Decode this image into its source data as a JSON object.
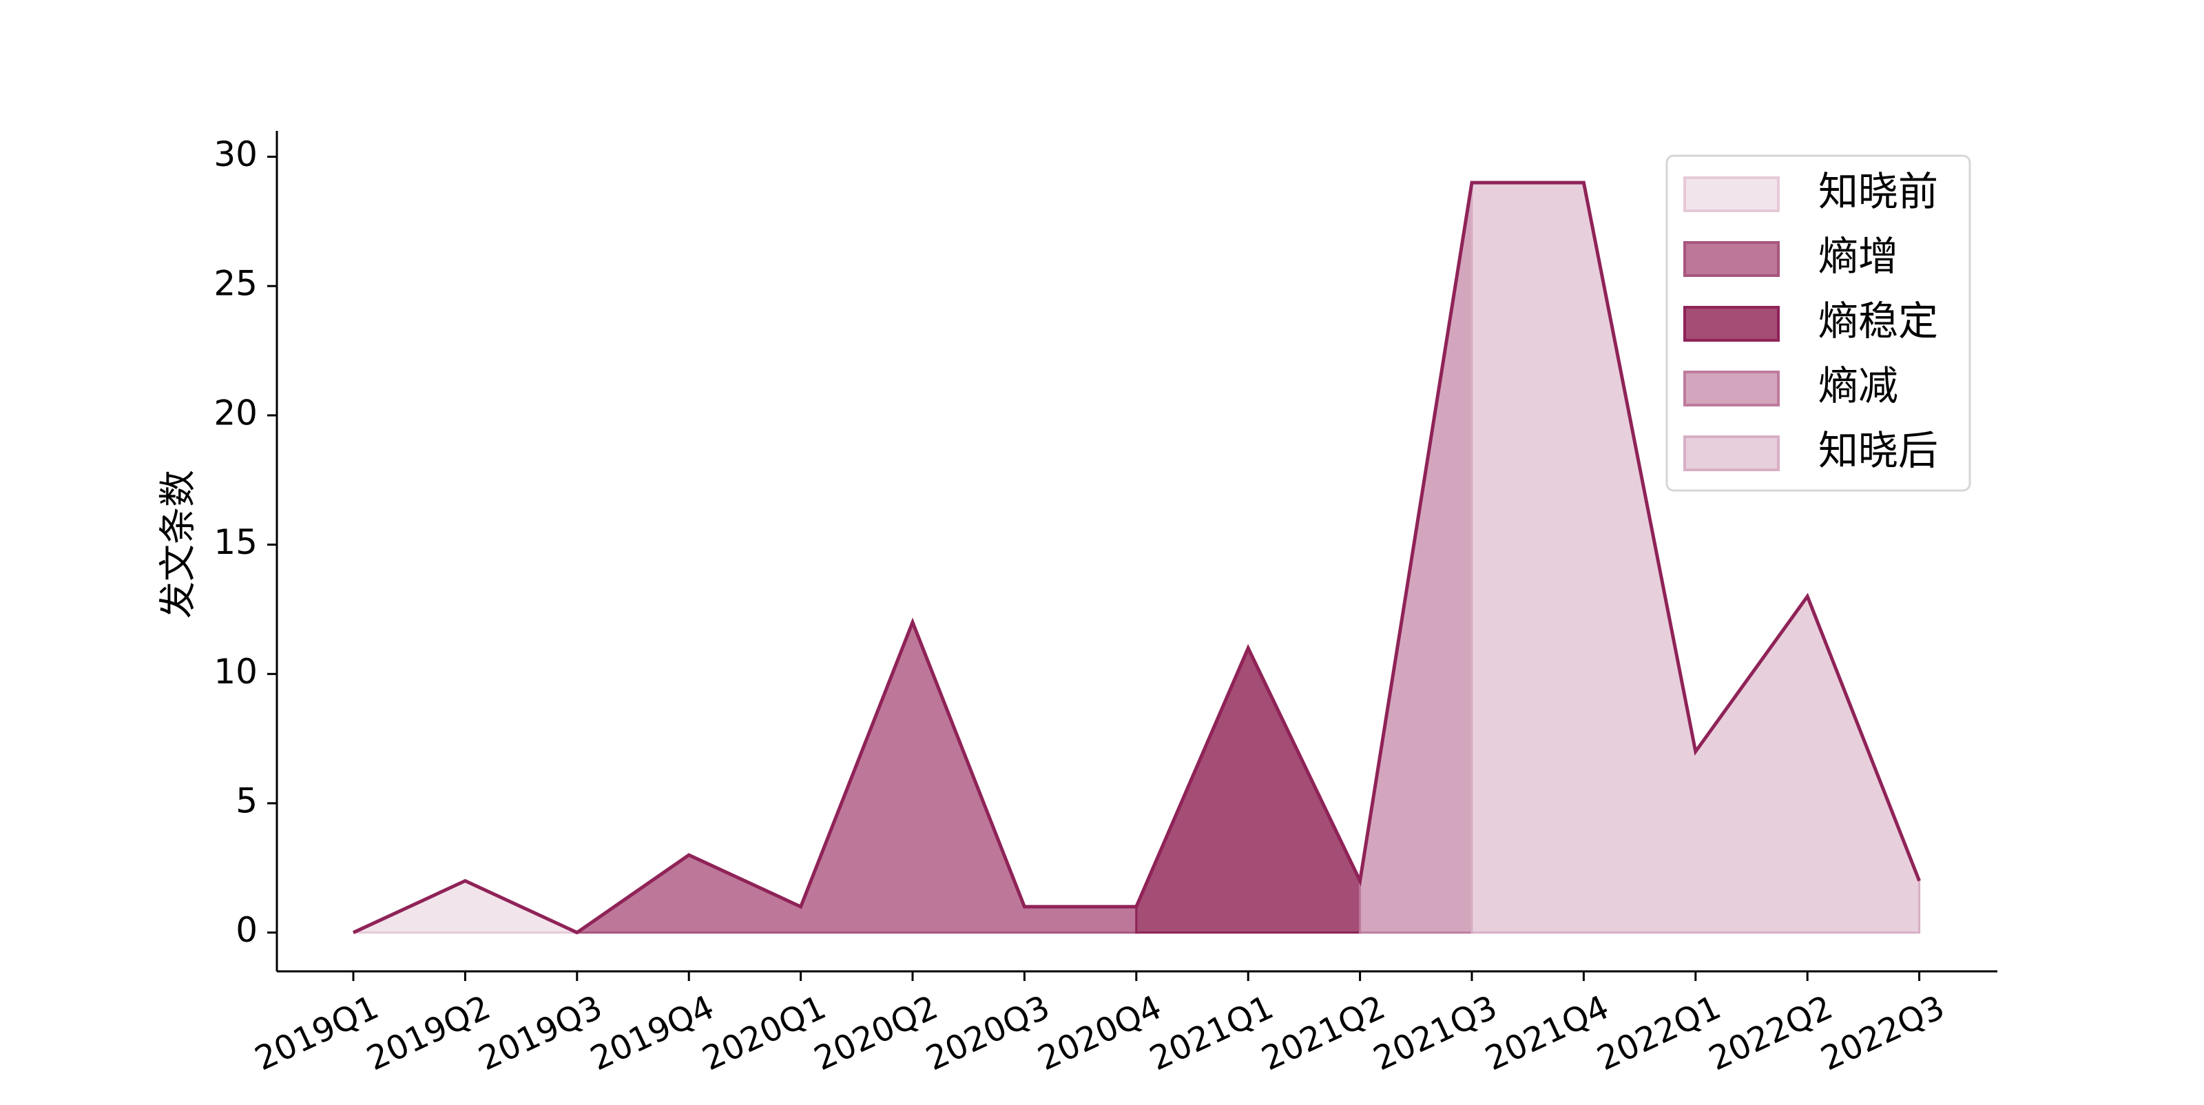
{
  "chart_data": {
    "type": "area",
    "categories": [
      "2019Q1",
      "2019Q2",
      "2019Q3",
      "2019Q4",
      "2020Q1",
      "2020Q2",
      "2020Q3",
      "2020Q4",
      "2021Q1",
      "2021Q2",
      "2021Q3",
      "2021Q4",
      "2022Q1",
      "2022Q2",
      "2022Q3"
    ],
    "values": [
      0,
      2,
      0,
      3,
      1,
      12,
      1,
      1,
      11,
      2,
      29,
      29,
      7,
      13,
      2
    ],
    "ylabel": "发文条数",
    "xlabel": "",
    "ylim": [
      -1.5,
      31
    ],
    "yticks": [
      0,
      5,
      10,
      15,
      20,
      25,
      30
    ],
    "grid": false,
    "legend_position": "top-right",
    "line_color": "#8f2358",
    "segments": [
      {
        "name": "知晓前",
        "from": "2019Q1",
        "to": "2019Q3",
        "color": "#f2e4eb",
        "edge": "#e6c9d7"
      },
      {
        "name": "熵增",
        "from": "2019Q3",
        "to": "2020Q4",
        "color": "#bd7799",
        "edge": "#a8557e"
      },
      {
        "name": "熵稳定",
        "from": "2020Q4",
        "to": "2021Q2",
        "color": "#a44d75",
        "edge": "#8f2358"
      },
      {
        "name": "熵减",
        "from": "2021Q2",
        "to": "2021Q3",
        "color": "#d4a6bd",
        "edge": "#bf7b9d"
      },
      {
        "name": "知晓后",
        "from": "2021Q3",
        "to": "2022Q3",
        "color": "#e8cfdc",
        "edge": "#d8afc4"
      }
    ]
  }
}
